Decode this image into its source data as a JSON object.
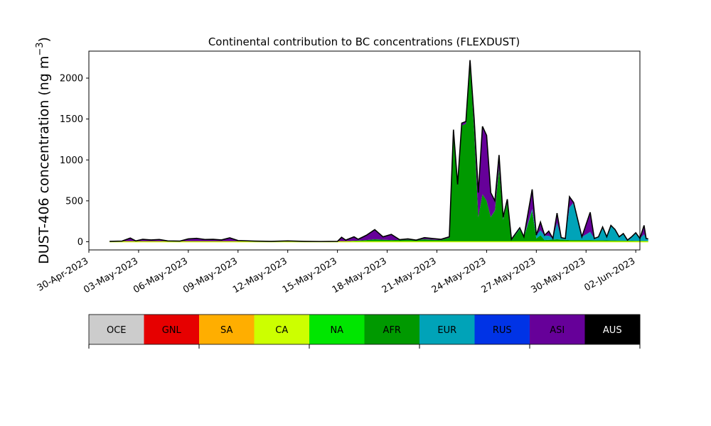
{
  "chart_data": {
    "type": "area",
    "title": "Continental contribution to BC concentrations (FLEXDUST)",
    "ylabel_main": "DUST-406 concentration (ng m",
    "ylabel_sup": "−3",
    "ylabel_end": ")",
    "xlabel": "",
    "ylim": [
      -100,
      2330
    ],
    "xlim": [
      "2023-04-30T00:00",
      "2023-06-02T06:00"
    ],
    "y_ticks": [
      0,
      500,
      1000,
      1500,
      2000
    ],
    "y_tick_labels": [
      "0",
      "500",
      "1000",
      "1500",
      "2000"
    ],
    "x_ticks": [
      "2023-04-30",
      "2023-05-03",
      "2023-05-06",
      "2023-05-09",
      "2023-05-12",
      "2023-05-15",
      "2023-05-18",
      "2023-05-21",
      "2023-05-24",
      "2023-05-27",
      "2023-05-30",
      "2023-06-02"
    ],
    "x_tick_labels": [
      "30-Apr-2023",
      "03-May-2023",
      "06-May-2023",
      "09-May-2023",
      "12-May-2023",
      "15-May-2023",
      "18-May-2023",
      "21-May-2023",
      "24-May-2023",
      "27-May-2023",
      "30-May-2023",
      "02-Jun-2023"
    ],
    "grid": false,
    "stack_order": [
      "AFR",
      "EUR",
      "ASI"
    ],
    "total": [
      [
        "2023-05-01T06:00",
        5
      ],
      [
        "2023-05-02T00:00",
        8
      ],
      [
        "2023-05-02T12:00",
        45
      ],
      [
        "2023-05-02T20:00",
        10
      ],
      [
        "2023-05-03T06:00",
        30
      ],
      [
        "2023-05-03T18:00",
        22
      ],
      [
        "2023-05-04T06:00",
        28
      ],
      [
        "2023-05-04T18:00",
        10
      ],
      [
        "2023-05-05T12:00",
        8
      ],
      [
        "2023-05-06T00:00",
        35
      ],
      [
        "2023-05-06T12:00",
        42
      ],
      [
        "2023-05-07T00:00",
        28
      ],
      [
        "2023-05-07T12:00",
        30
      ],
      [
        "2023-05-08T00:00",
        22
      ],
      [
        "2023-05-08T12:00",
        48
      ],
      [
        "2023-05-09T00:00",
        15
      ],
      [
        "2023-05-10T00:00",
        8
      ],
      [
        "2023-05-11T00:00",
        5
      ],
      [
        "2023-05-12T00:00",
        10
      ],
      [
        "2023-05-13T00:00",
        5
      ],
      [
        "2023-05-14T00:00",
        3
      ],
      [
        "2023-05-15T00:00",
        5
      ],
      [
        "2023-05-15T06:00",
        55
      ],
      [
        "2023-05-15T12:00",
        20
      ],
      [
        "2023-05-16T00:00",
        60
      ],
      [
        "2023-05-16T06:00",
        30
      ],
      [
        "2023-05-16T18:00",
        80
      ],
      [
        "2023-05-17T06:00",
        148
      ],
      [
        "2023-05-17T18:00",
        60
      ],
      [
        "2023-05-18T06:00",
        90
      ],
      [
        "2023-05-18T18:00",
        25
      ],
      [
        "2023-05-19T06:00",
        35
      ],
      [
        "2023-05-19T18:00",
        20
      ],
      [
        "2023-05-20T06:00",
        50
      ],
      [
        "2023-05-20T18:00",
        40
      ],
      [
        "2023-05-21T06:00",
        30
      ],
      [
        "2023-05-21T18:00",
        60
      ],
      [
        "2023-05-22T00:00",
        1370
      ],
      [
        "2023-05-22T06:00",
        700
      ],
      [
        "2023-05-22T12:00",
        1450
      ],
      [
        "2023-05-22T18:00",
        1470
      ],
      [
        "2023-05-23T00:00",
        2220
      ],
      [
        "2023-05-23T06:00",
        1500
      ],
      [
        "2023-05-23T12:00",
        600
      ],
      [
        "2023-05-23T18:00",
        1410
      ],
      [
        "2023-05-24T00:00",
        1300
      ],
      [
        "2023-05-24T06:00",
        600
      ],
      [
        "2023-05-24T12:00",
        500
      ],
      [
        "2023-05-24T18:00",
        1060
      ],
      [
        "2023-05-25T00:00",
        300
      ],
      [
        "2023-05-25T06:00",
        520
      ],
      [
        "2023-05-25T12:00",
        30
      ],
      [
        "2023-05-26T00:00",
        170
      ],
      [
        "2023-05-26T06:00",
        60
      ],
      [
        "2023-05-26T18:00",
        640
      ],
      [
        "2023-05-27T00:00",
        80
      ],
      [
        "2023-05-27T06:00",
        240
      ],
      [
        "2023-05-27T12:00",
        80
      ],
      [
        "2023-05-27T18:00",
        130
      ],
      [
        "2023-05-28T00:00",
        40
      ],
      [
        "2023-05-28T06:00",
        350
      ],
      [
        "2023-05-28T12:00",
        50
      ],
      [
        "2023-05-28T18:00",
        40
      ],
      [
        "2023-05-29T00:00",
        550
      ],
      [
        "2023-05-29T06:00",
        480
      ],
      [
        "2023-05-29T18:00",
        60
      ],
      [
        "2023-05-30T06:00",
        360
      ],
      [
        "2023-05-30T12:00",
        40
      ],
      [
        "2023-05-30T18:00",
        60
      ],
      [
        "2023-05-31T00:00",
        180
      ],
      [
        "2023-05-31T06:00",
        60
      ],
      [
        "2023-05-31T12:00",
        200
      ],
      [
        "2023-05-31T18:00",
        150
      ],
      [
        "2023-06-01T00:00",
        60
      ],
      [
        "2023-06-01T06:00",
        100
      ],
      [
        "2023-06-01T12:00",
        20
      ],
      [
        "2023-06-01T18:00",
        60
      ],
      [
        "2023-06-02T00:00",
        110
      ],
      [
        "2023-06-02T06:00",
        40
      ],
      [
        "2023-06-02T12:00",
        200
      ],
      [
        "2023-06-02T15:00",
        40
      ],
      [
        "2023-06-02T18:00",
        35
      ]
    ],
    "AFR": [
      [
        "2023-05-01T06:00",
        0
      ],
      [
        "2023-05-15T00:00",
        0
      ],
      [
        "2023-05-16T18:00",
        20
      ],
      [
        "2023-05-17T06:00",
        30
      ],
      [
        "2023-05-18T06:00",
        20
      ],
      [
        "2023-05-20T06:00",
        30
      ],
      [
        "2023-05-21T06:00",
        20
      ],
      [
        "2023-05-21T18:00",
        50
      ],
      [
        "2023-05-22T00:00",
        1350
      ],
      [
        "2023-05-22T06:00",
        690
      ],
      [
        "2023-05-22T12:00",
        1420
      ],
      [
        "2023-05-22T18:00",
        1440
      ],
      [
        "2023-05-23T00:00",
        2180
      ],
      [
        "2023-05-23T06:00",
        1350
      ],
      [
        "2023-05-23T12:00",
        300
      ],
      [
        "2023-05-23T18:00",
        580
      ],
      [
        "2023-05-24T00:00",
        500
      ],
      [
        "2023-05-24T06:00",
        300
      ],
      [
        "2023-05-24T12:00",
        380
      ],
      [
        "2023-05-24T18:00",
        900
      ],
      [
        "2023-05-25T00:00",
        270
      ],
      [
        "2023-05-25T06:00",
        480
      ],
      [
        "2023-05-25T12:00",
        20
      ],
      [
        "2023-05-26T00:00",
        150
      ],
      [
        "2023-05-26T06:00",
        50
      ],
      [
        "2023-05-26T18:00",
        380
      ],
      [
        "2023-05-27T00:00",
        40
      ],
      [
        "2023-05-27T06:00",
        80
      ],
      [
        "2023-05-27T12:00",
        20
      ],
      [
        "2023-05-28T06:00",
        30
      ],
      [
        "2023-05-29T00:00",
        20
      ],
      [
        "2023-05-30T06:00",
        20
      ],
      [
        "2023-06-02T18:00",
        10
      ]
    ],
    "EUR": [
      [
        "2023-05-01T06:00",
        0
      ],
      [
        "2023-05-20T00:00",
        0
      ],
      [
        "2023-05-22T00:00",
        0
      ],
      [
        "2023-05-24T00:00",
        0
      ],
      [
        "2023-05-26T00:00",
        10
      ],
      [
        "2023-05-26T18:00",
        20
      ],
      [
        "2023-05-27T06:00",
        60
      ],
      [
        "2023-05-27T18:00",
        50
      ],
      [
        "2023-05-28T06:00",
        200
      ],
      [
        "2023-05-28T18:00",
        30
      ],
      [
        "2023-05-29T00:00",
        400
      ],
      [
        "2023-05-29T06:00",
        460
      ],
      [
        "2023-05-29T18:00",
        50
      ],
      [
        "2023-05-30T06:00",
        100
      ],
      [
        "2023-05-30T18:00",
        40
      ],
      [
        "2023-05-31T00:00",
        160
      ],
      [
        "2023-05-31T12:00",
        190
      ],
      [
        "2023-05-31T18:00",
        140
      ],
      [
        "2023-06-01T00:00",
        50
      ],
      [
        "2023-06-01T06:00",
        90
      ],
      [
        "2023-06-01T18:00",
        50
      ],
      [
        "2023-06-02T00:00",
        100
      ],
      [
        "2023-06-02T12:00",
        80
      ],
      [
        "2023-06-02T18:00",
        30
      ]
    ],
    "legend": [
      {
        "label": "OCE",
        "color": "#cccccc"
      },
      {
        "label": "GNL",
        "color": "#e60000"
      },
      {
        "label": "SA",
        "color": "#ffae00"
      },
      {
        "label": "CA",
        "color": "#ccff00"
      },
      {
        "label": "NA",
        "color": "#00e600"
      },
      {
        "label": "AFR",
        "color": "#009900"
      },
      {
        "label": "EUR",
        "color": "#00a3b8"
      },
      {
        "label": "RUS",
        "color": "#0033e6"
      },
      {
        "label": "ASI",
        "color": "#660099"
      },
      {
        "label": "AUS",
        "color": "#000000"
      }
    ]
  }
}
